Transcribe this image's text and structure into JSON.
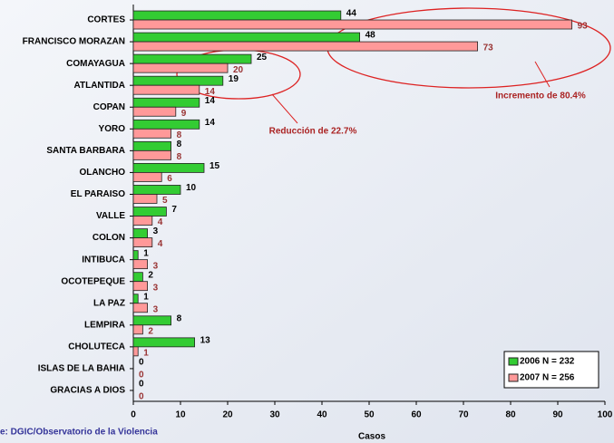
{
  "chart_data": {
    "type": "bar",
    "orientation": "horizontal",
    "categories": [
      "CORTES",
      "FRANCISCO MORAZAN",
      "COMAYAGUA",
      "ATLANTIDA",
      "COPAN",
      "YORO",
      "SANTA BARBARA",
      "OLANCHO",
      "EL PARAISO",
      "VALLE",
      "COLON",
      "INTIBUCA",
      "OCOTEPEQUE",
      "LA PAZ",
      "LEMPIRA",
      "CHOLUTECA",
      "ISLAS DE LA BAHIA",
      "GRACIAS A DIOS"
    ],
    "series": [
      {
        "name": "2006 N = 232",
        "color": "#33cc33",
        "label_color": "#000000",
        "values": [
          44,
          48,
          25,
          19,
          14,
          14,
          8,
          15,
          10,
          7,
          3,
          1,
          2,
          1,
          8,
          13,
          0,
          0
        ]
      },
      {
        "name": "2007 N = 256",
        "color": "#ff9999",
        "label_color": "#993333",
        "values": [
          93,
          73,
          20,
          14,
          9,
          8,
          8,
          6,
          5,
          4,
          4,
          3,
          3,
          3,
          2,
          1,
          0,
          0
        ]
      }
    ],
    "xlabel": "Casos",
    "xlim": [
      0,
      100
    ],
    "xticks": [
      0,
      10,
      20,
      30,
      40,
      50,
      60,
      70,
      80,
      90,
      100
    ],
    "legend": "bottom-right",
    "annotations": [
      "Incremento de 80.4%",
      "Reducción de 22.7%"
    ],
    "source": "e: DGIC/Observatorio de la Violencia"
  }
}
